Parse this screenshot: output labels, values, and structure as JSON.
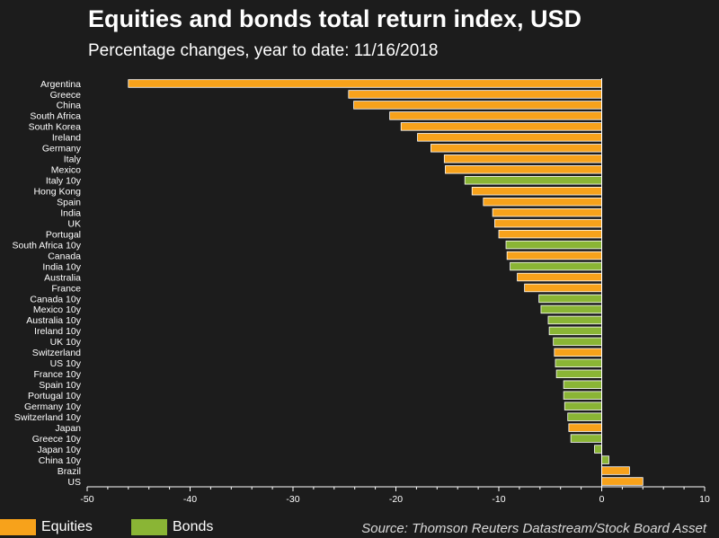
{
  "title": "Equities and bonds total return index, USD",
  "subtitle": "Percentage changes, year to date: 11/16/2018",
  "source": "Source: Thomson Reuters Datastream/Stock Board Asset",
  "colors": {
    "equities": "#f7a21b",
    "bonds": "#8ab535",
    "background": "#1c1c1c"
  },
  "legend": [
    {
      "label": "Equities",
      "series": "equities"
    },
    {
      "label": "Bonds",
      "series": "bonds"
    }
  ],
  "chart_data": {
    "type": "bar",
    "orientation": "horizontal",
    "title": "Equities and bonds total return index, USD",
    "xlabel": "",
    "ylabel": "",
    "xlim": [
      -50,
      10
    ],
    "xticks": [
      -50,
      -40,
      -30,
      -20,
      -10,
      0,
      10
    ],
    "categories": [
      "Argentina",
      "Greece",
      "China",
      "South Africa",
      "South Korea",
      "Ireland",
      "Germany",
      "Italy",
      "Mexico",
      "Italy 10y",
      "Hong Kong",
      "Spain",
      "India",
      "UK",
      "Portugal",
      "South Africa 10y",
      "Canada",
      "India 10y",
      "Australia",
      "France",
      "Canada 10y",
      "Mexico 10y",
      "Australia 10y",
      "Ireland 10y",
      "UK 10y",
      "Switzerland",
      "US 10y",
      "France 10y",
      "Spain 10y",
      "Portugal 10y",
      "Germany 10y",
      "Switzerland 10y",
      "Japan",
      "Greece 10y",
      "Japan 10y",
      "China 10y",
      "Brazil",
      "US"
    ],
    "values": [
      -46.0,
      -24.6,
      -24.1,
      -20.6,
      -19.5,
      -17.9,
      -16.6,
      -15.3,
      -15.2,
      -13.3,
      -12.6,
      -11.5,
      -10.6,
      -10.4,
      -10.0,
      -9.3,
      -9.2,
      -8.9,
      -8.2,
      -7.5,
      -6.1,
      -5.9,
      -5.2,
      -5.1,
      -4.7,
      -4.6,
      -4.5,
      -4.4,
      -3.7,
      -3.7,
      -3.6,
      -3.3,
      -3.2,
      -3.0,
      -0.7,
      0.7,
      2.7,
      4.0
    ],
    "series_type": [
      "equities",
      "equities",
      "equities",
      "equities",
      "equities",
      "equities",
      "equities",
      "equities",
      "equities",
      "bonds",
      "equities",
      "equities",
      "equities",
      "equities",
      "equities",
      "bonds",
      "equities",
      "bonds",
      "equities",
      "equities",
      "bonds",
      "bonds",
      "bonds",
      "bonds",
      "bonds",
      "equities",
      "bonds",
      "bonds",
      "bonds",
      "bonds",
      "bonds",
      "bonds",
      "equities",
      "bonds",
      "bonds",
      "bonds",
      "equities",
      "equities"
    ]
  }
}
